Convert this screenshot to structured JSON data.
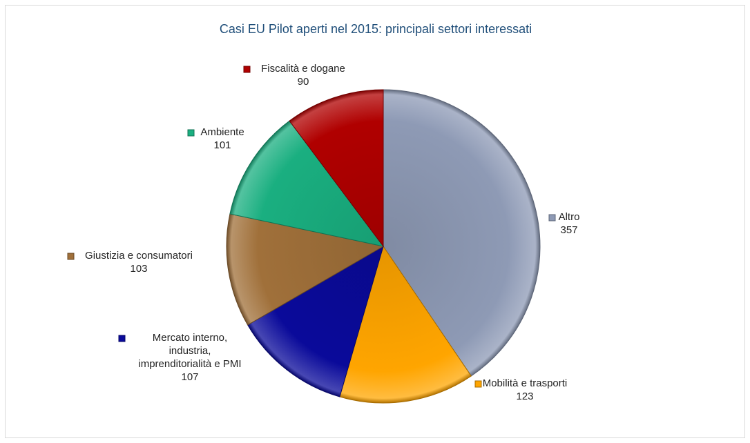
{
  "chart_data": {
    "type": "pie",
    "title": "Casi EU Pilot aperti nel 2015: principali settori interessati",
    "slices": [
      {
        "label": "Altro",
        "value": 357,
        "color": "#8e9ab5"
      },
      {
        "label": "Mobilità e trasporti",
        "value": 123,
        "color": "#ffa500"
      },
      {
        "label": "Mercato interno, industria, imprenditorialità e PMI",
        "label_lines": [
          "Mercato interno,",
          "industria,",
          "imprenditorialità e PMI"
        ],
        "value": 107,
        "color": "#0a0a9a"
      },
      {
        "label": "Giustizia e consumatori",
        "value": 103,
        "color": "#a0703a"
      },
      {
        "label": "Ambiente",
        "value": 101,
        "color": "#1aaf80"
      },
      {
        "label": "Fiscalità e dogane",
        "value": 90,
        "color": "#b00000"
      }
    ]
  }
}
